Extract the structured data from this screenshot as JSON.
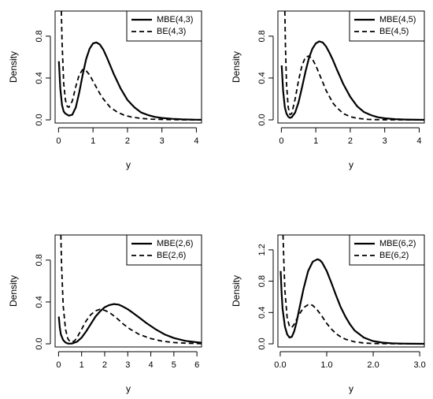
{
  "chart_data": [
    {
      "type": "line",
      "xlabel": "y",
      "ylabel": "Density",
      "xlim": [
        -0.1,
        4.15
      ],
      "ylim": [
        -0.03,
        1.04
      ],
      "xticks": [
        0,
        1,
        2,
        3,
        4
      ],
      "xtick_labels": [
        "0",
        "1",
        "2",
        "3",
        "4"
      ],
      "yticks": [
        0.0,
        0.4,
        0.8
      ],
      "ytick_labels": [
        "0.0",
        "0.4",
        "0.8"
      ],
      "legend_position": "top-right",
      "series": [
        {
          "name": "MBE(4,3)",
          "style": "solid",
          "x": [
            0.01,
            0.05,
            0.1,
            0.15,
            0.2,
            0.3,
            0.4,
            0.5,
            0.6,
            0.7,
            0.8,
            0.9,
            1.0,
            1.1,
            1.2,
            1.3,
            1.4,
            1.5,
            1.6,
            1.7,
            1.8,
            2.0,
            2.2,
            2.4,
            2.6,
            2.8,
            3.0,
            3.3,
            3.6,
            4.0,
            4.15
          ],
          "y": [
            0.56,
            0.3,
            0.14,
            0.08,
            0.06,
            0.04,
            0.05,
            0.12,
            0.26,
            0.43,
            0.58,
            0.68,
            0.73,
            0.74,
            0.72,
            0.67,
            0.6,
            0.52,
            0.44,
            0.37,
            0.3,
            0.19,
            0.12,
            0.07,
            0.045,
            0.028,
            0.018,
            0.01,
            0.005,
            0.002,
            0.001
          ]
        },
        {
          "name": "BE(4,3)",
          "style": "dashed",
          "x": [
            0.08,
            0.1,
            0.15,
            0.2,
            0.25,
            0.3,
            0.4,
            0.5,
            0.6,
            0.7,
            0.8,
            0.9,
            1.0,
            1.1,
            1.2,
            1.3,
            1.4,
            1.5,
            1.7,
            1.9,
            2.1,
            2.4,
            2.7,
            3.0,
            3.5,
            4.15
          ],
          "y": [
            1.04,
            0.75,
            0.35,
            0.19,
            0.13,
            0.12,
            0.18,
            0.32,
            0.43,
            0.48,
            0.47,
            0.43,
            0.37,
            0.31,
            0.25,
            0.2,
            0.16,
            0.12,
            0.075,
            0.045,
            0.028,
            0.014,
            0.007,
            0.004,
            0.001,
            0.0
          ]
        }
      ]
    },
    {
      "type": "line",
      "xlabel": "y",
      "ylabel": "Density",
      "xlim": [
        -0.1,
        4.15
      ],
      "ylim": [
        -0.03,
        1.04
      ],
      "xticks": [
        0,
        1,
        2,
        3,
        4
      ],
      "xtick_labels": [
        "0",
        "1",
        "2",
        "3",
        "4"
      ],
      "yticks": [
        0.0,
        0.4,
        0.8
      ],
      "ytick_labels": [
        "0.0",
        "0.4",
        "0.8"
      ],
      "legend_position": "top-right",
      "series": [
        {
          "name": "MBE(4,5)",
          "style": "solid",
          "x": [
            0.01,
            0.05,
            0.1,
            0.15,
            0.2,
            0.25,
            0.3,
            0.4,
            0.5,
            0.6,
            0.7,
            0.8,
            0.9,
            1.0,
            1.1,
            1.2,
            1.3,
            1.4,
            1.5,
            1.6,
            1.8,
            2.0,
            2.2,
            2.4,
            2.6,
            2.8,
            3.0,
            3.3,
            3.6,
            4.0,
            4.15
          ],
          "y": [
            0.52,
            0.28,
            0.12,
            0.06,
            0.03,
            0.02,
            0.025,
            0.07,
            0.17,
            0.31,
            0.46,
            0.59,
            0.68,
            0.73,
            0.75,
            0.74,
            0.7,
            0.64,
            0.57,
            0.49,
            0.34,
            0.22,
            0.13,
            0.075,
            0.045,
            0.025,
            0.015,
            0.007,
            0.003,
            0.001,
            0.0
          ]
        },
        {
          "name": "BE(4,5)",
          "style": "dashed",
          "x": [
            0.1,
            0.12,
            0.15,
            0.2,
            0.25,
            0.3,
            0.4,
            0.5,
            0.6,
            0.7,
            0.8,
            0.9,
            1.0,
            1.1,
            1.2,
            1.3,
            1.4,
            1.5,
            1.6,
            1.8,
            2.0,
            2.2,
            2.5,
            2.8,
            3.2,
            3.6,
            4.15
          ],
          "y": [
            1.04,
            0.7,
            0.35,
            0.12,
            0.05,
            0.06,
            0.2,
            0.38,
            0.52,
            0.6,
            0.61,
            0.58,
            0.52,
            0.44,
            0.36,
            0.28,
            0.22,
            0.16,
            0.12,
            0.06,
            0.03,
            0.015,
            0.005,
            0.002,
            0.0,
            0.0,
            0.0
          ]
        }
      ]
    },
    {
      "type": "line",
      "xlabel": "y",
      "ylabel": "Density",
      "xlim": [
        -0.15,
        6.2
      ],
      "ylim": [
        -0.03,
        1.04
      ],
      "xticks": [
        0,
        1,
        2,
        3,
        4,
        5,
        6
      ],
      "xtick_labels": [
        "0",
        "1",
        "2",
        "3",
        "4",
        "5",
        "6"
      ],
      "yticks": [
        0.0,
        0.4,
        0.8
      ],
      "ytick_labels": [
        "0.0",
        "0.4",
        "0.8"
      ],
      "legend_position": "top-right",
      "series": [
        {
          "name": "MBE(2,6)",
          "style": "solid",
          "x": [
            0.01,
            0.05,
            0.1,
            0.2,
            0.3,
            0.4,
            0.5,
            0.6,
            0.8,
            1.0,
            1.2,
            1.4,
            1.6,
            1.8,
            2.0,
            2.2,
            2.4,
            2.6,
            2.8,
            3.0,
            3.2,
            3.5,
            3.8,
            4.2,
            4.6,
            5.0,
            5.5,
            6.2
          ],
          "y": [
            0.26,
            0.16,
            0.09,
            0.035,
            0.012,
            0.003,
            0.002,
            0.004,
            0.02,
            0.06,
            0.12,
            0.19,
            0.26,
            0.31,
            0.35,
            0.37,
            0.38,
            0.375,
            0.355,
            0.33,
            0.3,
            0.25,
            0.2,
            0.14,
            0.09,
            0.055,
            0.028,
            0.01
          ]
        },
        {
          "name": "BE(2,6)",
          "style": "dashed",
          "x": [
            0.1,
            0.13,
            0.2,
            0.3,
            0.4,
            0.5,
            0.6,
            0.7,
            0.8,
            1.0,
            1.2,
            1.4,
            1.6,
            1.8,
            2.0,
            2.2,
            2.5,
            2.8,
            3.1,
            3.5,
            4.0,
            4.5,
            5.0,
            5.5,
            6.2
          ],
          "y": [
            1.04,
            0.75,
            0.36,
            0.14,
            0.05,
            0.02,
            0.018,
            0.03,
            0.06,
            0.14,
            0.22,
            0.28,
            0.315,
            0.33,
            0.32,
            0.3,
            0.25,
            0.19,
            0.14,
            0.09,
            0.05,
            0.025,
            0.012,
            0.006,
            0.002
          ]
        }
      ]
    },
    {
      "type": "line",
      "xlabel": "y",
      "ylabel": "Density",
      "xlim": [
        -0.05,
        3.1
      ],
      "ylim": [
        -0.04,
        1.39
      ],
      "xticks": [
        0.0,
        1.0,
        2.0,
        3.0
      ],
      "xtick_labels": [
        "0.0",
        "1.0",
        "2.0",
        "3.0"
      ],
      "yticks": [
        0.0,
        0.4,
        0.8,
        1.2
      ],
      "ytick_labels": [
        "0.0",
        "0.4",
        "0.8",
        "1.2"
      ],
      "legend_position": "top-right",
      "series": [
        {
          "name": "MBE(6,2)",
          "style": "solid",
          "x": [
            0.01,
            0.03,
            0.05,
            0.1,
            0.15,
            0.2,
            0.25,
            0.3,
            0.35,
            0.4,
            0.5,
            0.6,
            0.7,
            0.8,
            0.85,
            0.9,
            1.0,
            1.1,
            1.2,
            1.3,
            1.4,
            1.5,
            1.6,
            1.8,
            2.0,
            2.2,
            2.4,
            2.6,
            2.8,
            3.1
          ],
          "y": [
            0.93,
            0.65,
            0.45,
            0.22,
            0.12,
            0.08,
            0.09,
            0.16,
            0.27,
            0.42,
            0.7,
            0.93,
            1.05,
            1.08,
            1.07,
            1.04,
            0.93,
            0.78,
            0.62,
            0.47,
            0.35,
            0.25,
            0.17,
            0.08,
            0.035,
            0.015,
            0.007,
            0.003,
            0.001,
            0.0
          ]
        },
        {
          "name": "BE(6,2)",
          "style": "dashed",
          "x": [
            0.06,
            0.08,
            0.1,
            0.15,
            0.2,
            0.25,
            0.3,
            0.4,
            0.5,
            0.6,
            0.65,
            0.7,
            0.8,
            0.9,
            1.0,
            1.1,
            1.2,
            1.3,
            1.4,
            1.6,
            1.8,
            2.0,
            2.4,
            2.8,
            3.1
          ],
          "y": [
            1.39,
            1.0,
            0.68,
            0.33,
            0.22,
            0.21,
            0.25,
            0.37,
            0.46,
            0.5,
            0.505,
            0.49,
            0.43,
            0.35,
            0.26,
            0.19,
            0.13,
            0.09,
            0.06,
            0.025,
            0.01,
            0.004,
            0.001,
            0.0,
            0.0
          ]
        }
      ]
    }
  ]
}
